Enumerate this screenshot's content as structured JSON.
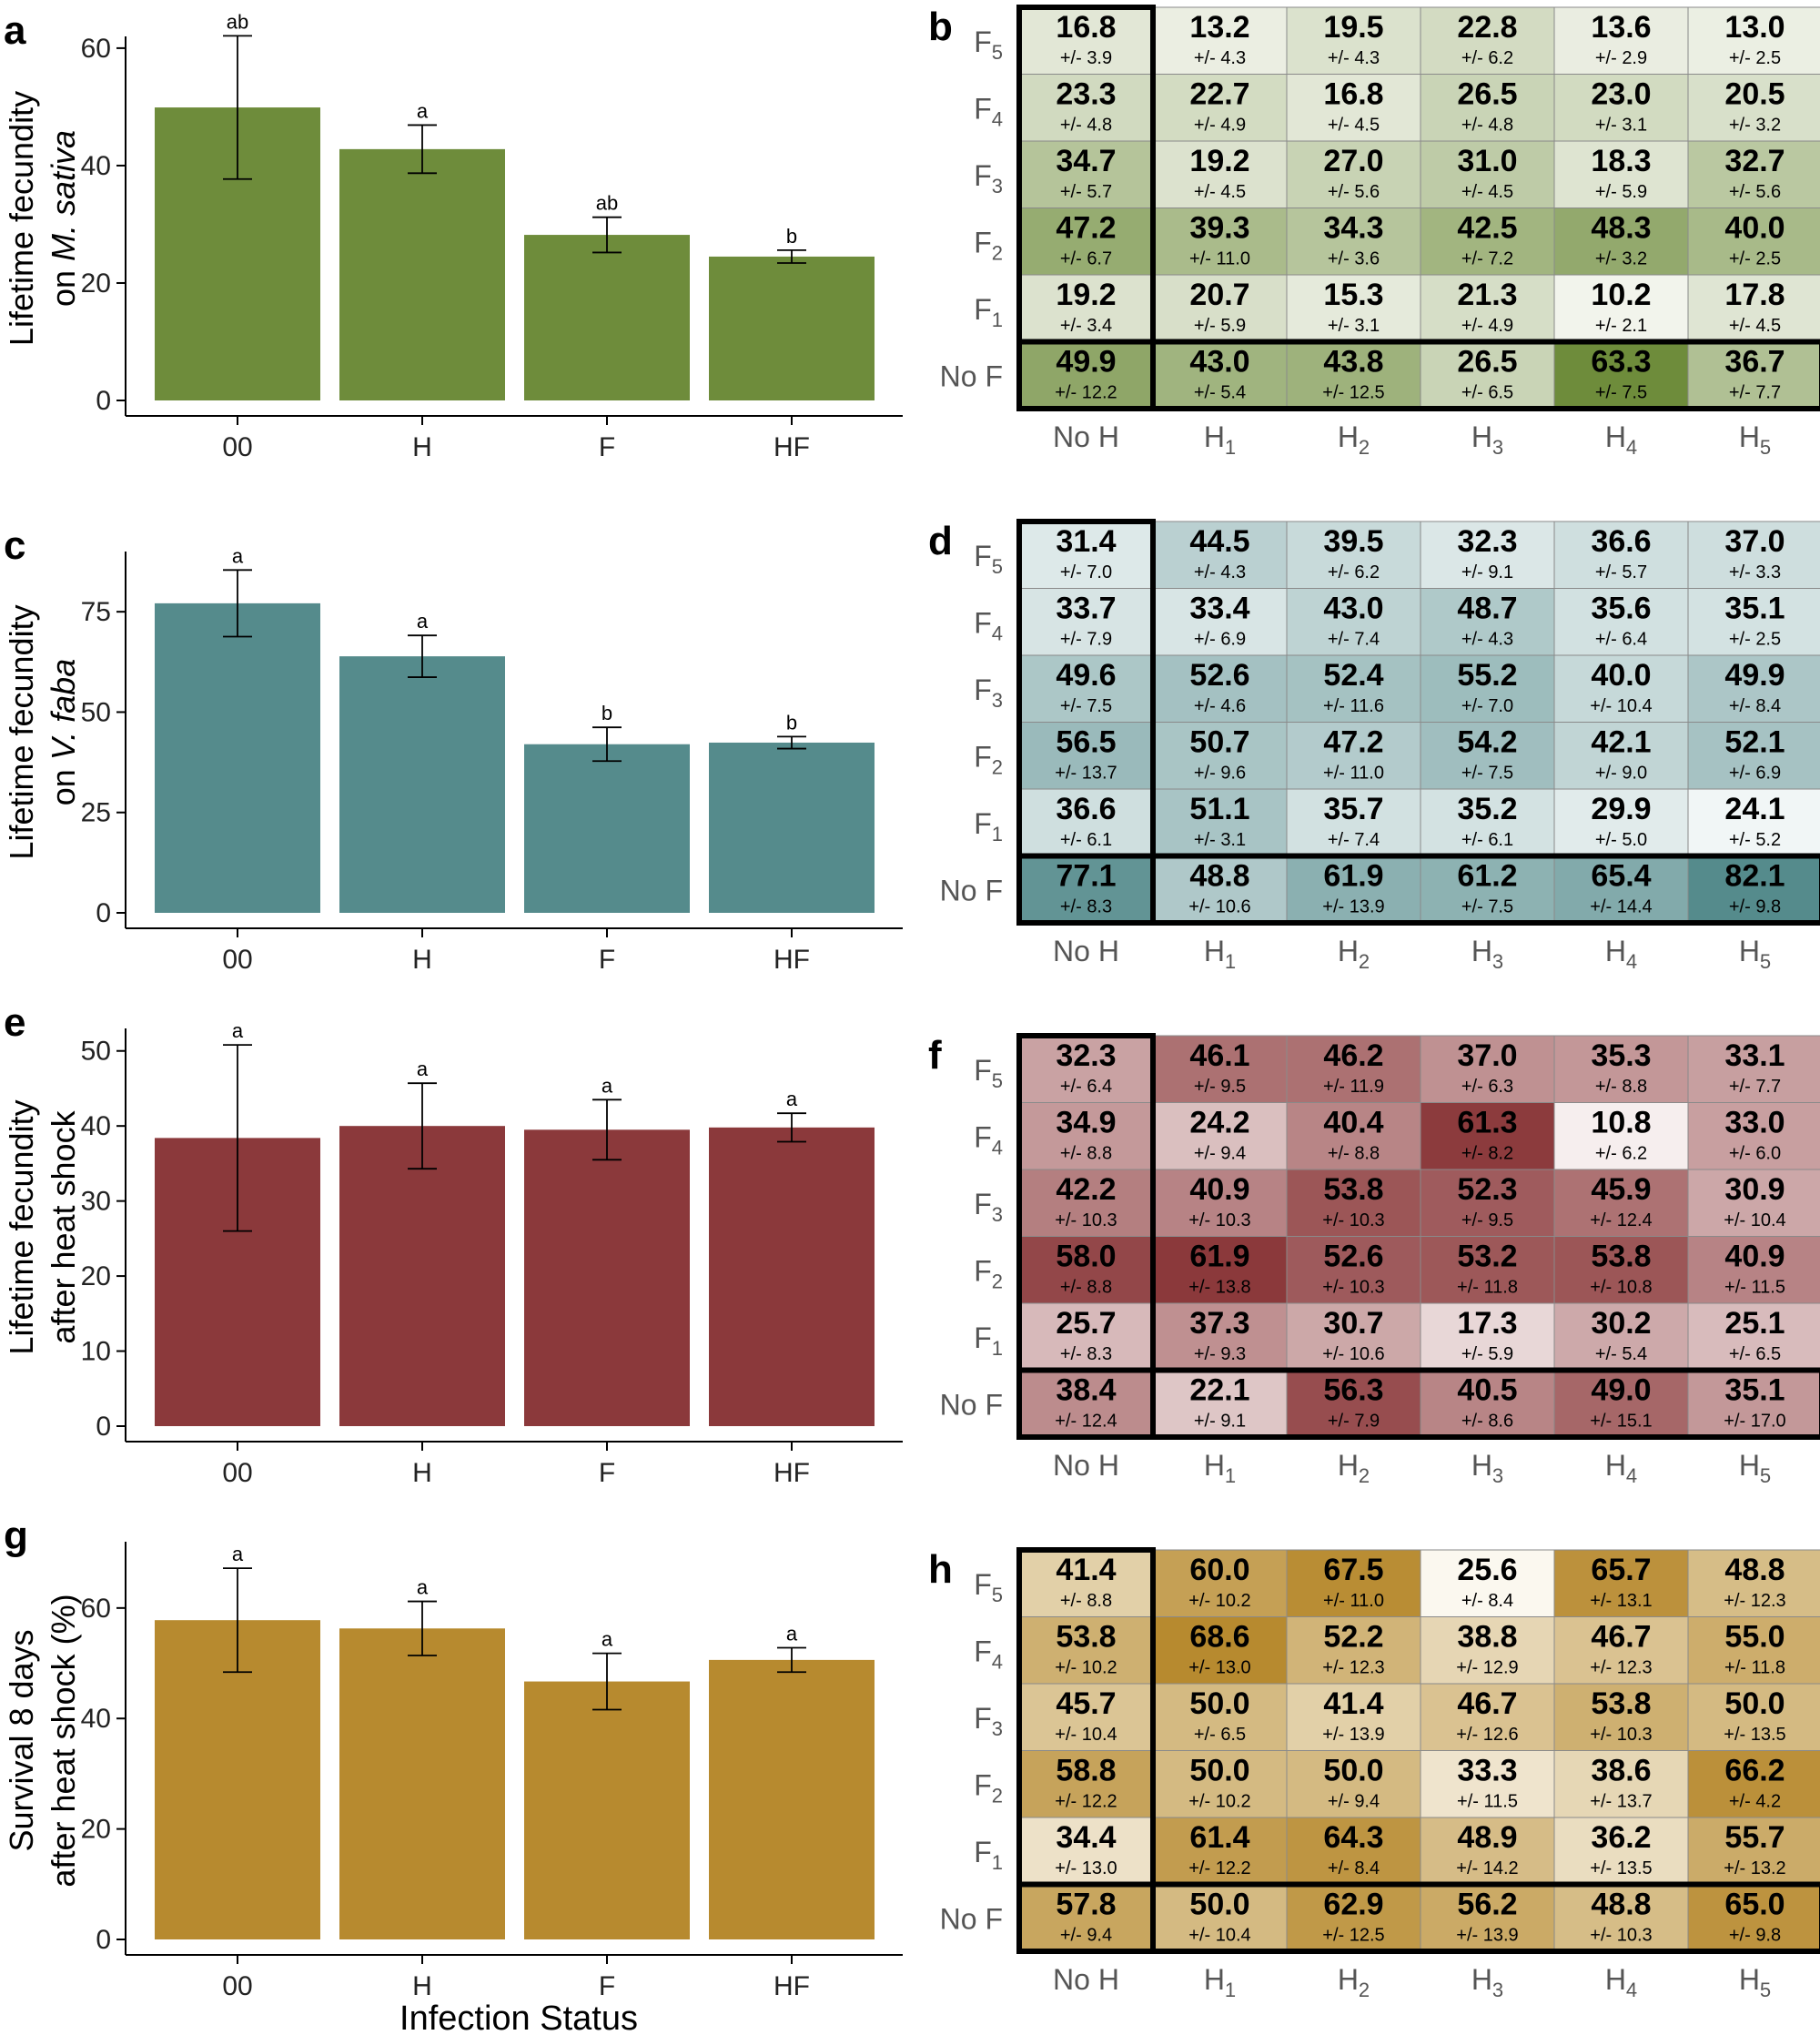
{
  "shared": {
    "bar_categories": [
      "00",
      "H",
      "F",
      "HF"
    ],
    "heat_rows": [
      {
        "base": "F",
        "sub": "5"
      },
      {
        "base": "F",
        "sub": "4"
      },
      {
        "base": "F",
        "sub": "3"
      },
      {
        "base": "F",
        "sub": "2"
      },
      {
        "base": "F",
        "sub": "1"
      },
      {
        "base": "No F",
        "sub": ""
      }
    ],
    "heat_cols": [
      {
        "base": "No H",
        "sub": ""
      },
      {
        "base": "H",
        "sub": "1"
      },
      {
        "base": "H",
        "sub": "2"
      },
      {
        "base": "H",
        "sub": "3"
      },
      {
        "base": "H",
        "sub": "4"
      },
      {
        "base": "H",
        "sub": "5"
      }
    ],
    "se_prefix": "+/- ",
    "xlabel": "Infection Status"
  },
  "chart_data": [
    {
      "panel": "a",
      "type": "bar",
      "ylabel_parts": [
        {
          "text": "Lifetime fecundity",
          "italic": false
        },
        {
          "text": "on ",
          "italic": false
        },
        {
          "text": "M. sativa",
          "italic": true
        }
      ],
      "categories": [
        "00",
        "H",
        "F",
        "HF"
      ],
      "values": [
        49.9,
        42.8,
        28.2,
        24.5
      ],
      "errors": [
        12.2,
        4.1,
        3.0,
        1.1
      ],
      "significance": [
        "ab",
        "a",
        "ab",
        "b"
      ],
      "ylim": [
        0,
        62
      ],
      "yticks": [
        0,
        20,
        40,
        60
      ],
      "color": "#6e8c3b"
    },
    {
      "panel": "b",
      "type": "heatmap",
      "color_low": "#f2f4ec",
      "color_high": "#6e8c3b",
      "value_range": [
        10.2,
        63.3
      ],
      "means": [
        [
          16.8,
          13.2,
          19.5,
          22.8,
          13.6,
          13.0
        ],
        [
          23.3,
          22.7,
          16.8,
          26.5,
          23.0,
          20.5
        ],
        [
          34.7,
          19.2,
          27.0,
          31.0,
          18.3,
          32.7
        ],
        [
          47.2,
          39.3,
          34.3,
          42.5,
          48.3,
          40.0
        ],
        [
          19.2,
          20.7,
          15.3,
          21.3,
          10.2,
          17.8
        ],
        [
          49.9,
          43.0,
          43.8,
          26.5,
          63.3,
          36.7
        ]
      ],
      "se": [
        [
          "3.9",
          "4.3",
          "4.3",
          "6.2",
          "2.9",
          "2.5"
        ],
        [
          "4.8",
          "4.9",
          "4.5",
          "4.8",
          "3.1",
          "3.2"
        ],
        [
          "5.7",
          "4.5",
          "5.6",
          "4.5",
          "5.9",
          "5.6"
        ],
        [
          "6.7",
          "11.0",
          "3.6",
          "7.2",
          "3.2",
          "2.5"
        ],
        [
          "3.4",
          "5.9",
          "3.1",
          "4.9",
          "2.1",
          "4.5"
        ],
        [
          "12.2",
          "5.4",
          "12.5",
          "6.5",
          "7.5",
          "7.7"
        ]
      ]
    },
    {
      "panel": "c",
      "type": "bar",
      "ylabel_parts": [
        {
          "text": "Lifetime fecundity",
          "italic": false
        },
        {
          "text": "on ",
          "italic": false
        },
        {
          "text": "V. faba",
          "italic": true
        }
      ],
      "categories": [
        "00",
        "H",
        "F",
        "HF"
      ],
      "values": [
        77.1,
        63.9,
        42.0,
        42.4
      ],
      "errors": [
        8.3,
        5.2,
        4.2,
        1.5
      ],
      "significance": [
        "a",
        "a",
        "b",
        "b"
      ],
      "ylim": [
        0,
        90
      ],
      "yticks": [
        0,
        25,
        50,
        75
      ],
      "color": "#558b8c"
    },
    {
      "panel": "d",
      "type": "heatmap",
      "color_low": "#f1f6f6",
      "color_high": "#558b8c",
      "value_range": [
        24.1,
        82.1
      ],
      "means": [
        [
          31.4,
          44.5,
          39.5,
          32.3,
          36.6,
          37.0
        ],
        [
          33.7,
          33.4,
          43.0,
          48.7,
          35.6,
          35.1
        ],
        [
          49.6,
          52.6,
          52.4,
          55.2,
          40.0,
          49.9
        ],
        [
          56.5,
          50.7,
          47.2,
          54.2,
          42.1,
          52.1
        ],
        [
          36.6,
          51.1,
          35.7,
          35.2,
          29.9,
          24.1
        ],
        [
          77.1,
          48.8,
          61.9,
          61.2,
          65.4,
          82.1
        ]
      ],
      "se": [
        [
          "7.0",
          "4.3",
          "6.2",
          "9.1",
          "5.7",
          "3.3"
        ],
        [
          "7.9",
          "6.9",
          "7.4",
          "4.3",
          "6.4",
          "2.5"
        ],
        [
          "7.5",
          "4.6",
          "11.6",
          "7.0",
          "10.4",
          "8.4"
        ],
        [
          "13.7",
          "9.6",
          "11.0",
          "7.5",
          "9.0",
          "6.9"
        ],
        [
          "6.1",
          "3.1",
          "7.4",
          "6.1",
          "5.0",
          "5.2"
        ],
        [
          "8.3",
          "10.6",
          "13.9",
          "7.5",
          "14.4",
          "9.8"
        ]
      ]
    },
    {
      "panel": "e",
      "type": "bar",
      "ylabel_parts": [
        {
          "text": "Lifetime fecundity",
          "italic": false
        },
        {
          "text": "after heat shock",
          "italic": false
        }
      ],
      "categories": [
        "00",
        "H",
        "F",
        "HF"
      ],
      "values": [
        38.4,
        40.0,
        39.5,
        39.8
      ],
      "errors": [
        12.4,
        5.7,
        4.0,
        1.9
      ],
      "significance": [
        "a",
        "a",
        "a",
        "a"
      ],
      "ylim": [
        0,
        53
      ],
      "yticks": [
        0,
        10,
        20,
        30,
        40,
        50
      ],
      "color": "#8b393b"
    },
    {
      "panel": "f",
      "type": "heatmap",
      "color_low": "#f6eeee",
      "color_high": "#8b393b",
      "value_range": [
        10.8,
        61.9
      ],
      "means": [
        [
          32.3,
          46.1,
          46.2,
          37.0,
          35.3,
          33.1
        ],
        [
          34.9,
          24.2,
          40.4,
          61.3,
          10.8,
          33.0
        ],
        [
          42.2,
          40.9,
          53.8,
          52.3,
          45.9,
          30.9
        ],
        [
          58.0,
          61.9,
          52.6,
          53.2,
          53.8,
          40.9
        ],
        [
          25.7,
          37.3,
          30.7,
          17.3,
          30.2,
          25.1
        ],
        [
          38.4,
          22.1,
          56.3,
          40.5,
          49.0,
          35.1
        ]
      ],
      "se": [
        [
          "6.4",
          "9.5",
          "11.9",
          "6.3",
          "8.8",
          "7.7"
        ],
        [
          "8.8",
          "9.4",
          "8.8",
          "8.2",
          "6.2",
          "6.0"
        ],
        [
          "10.3",
          "10.3",
          "10.3",
          "9.5",
          "12.4",
          "10.4"
        ],
        [
          "8.8",
          "13.8",
          "10.3",
          "11.8",
          "10.8",
          "11.5"
        ],
        [
          "8.3",
          "9.3",
          "10.6",
          "5.9",
          "5.4",
          "6.5"
        ],
        [
          "12.4",
          "9.1",
          "7.9",
          "8.6",
          "15.1",
          "17.0"
        ]
      ]
    },
    {
      "panel": "g",
      "type": "bar",
      "ylabel_parts": [
        {
          "text": "Survival 8 days",
          "italic": false
        },
        {
          "text": "after heat shock (%)",
          "italic": false
        }
      ],
      "categories": [
        "00",
        "H",
        "F",
        "HF"
      ],
      "values": [
        57.8,
        56.3,
        46.7,
        50.6
      ],
      "errors": [
        9.4,
        4.9,
        5.1,
        2.2
      ],
      "significance": [
        "a",
        "a",
        "a",
        "a"
      ],
      "ylim": [
        0,
        72
      ],
      "yticks": [
        0,
        20,
        40,
        60
      ],
      "color": "#b78a2f"
    },
    {
      "panel": "h",
      "type": "heatmap",
      "color_low": "#fbf8ef",
      "color_high": "#b78a2f",
      "value_range": [
        25.6,
        68.6
      ],
      "means": [
        [
          41.4,
          60.0,
          67.5,
          25.6,
          65.7,
          48.8
        ],
        [
          53.8,
          68.6,
          52.2,
          38.8,
          46.7,
          55.0
        ],
        [
          45.7,
          50.0,
          41.4,
          46.7,
          53.8,
          50.0
        ],
        [
          58.8,
          50.0,
          50.0,
          33.3,
          38.6,
          66.2
        ],
        [
          34.4,
          61.4,
          64.3,
          48.9,
          36.2,
          55.7
        ],
        [
          57.8,
          50.0,
          62.9,
          56.2,
          48.8,
          65.0
        ]
      ],
      "se": [
        [
          "8.8",
          "10.2",
          "11.0",
          "8.4",
          "13.1",
          "12.3"
        ],
        [
          "10.2",
          "13.0",
          "12.3",
          "12.9",
          "12.3",
          "11.8"
        ],
        [
          "10.4",
          "6.5",
          "13.9",
          "12.6",
          "10.3",
          "13.5"
        ],
        [
          "12.2",
          "10.2",
          "9.4",
          "11.5",
          "13.7",
          "4.2"
        ],
        [
          "13.0",
          "12.2",
          "8.4",
          "14.2",
          "13.5",
          "13.2"
        ],
        [
          "9.4",
          "10.4",
          "12.5",
          "13.9",
          "10.3",
          "9.8"
        ]
      ]
    }
  ]
}
